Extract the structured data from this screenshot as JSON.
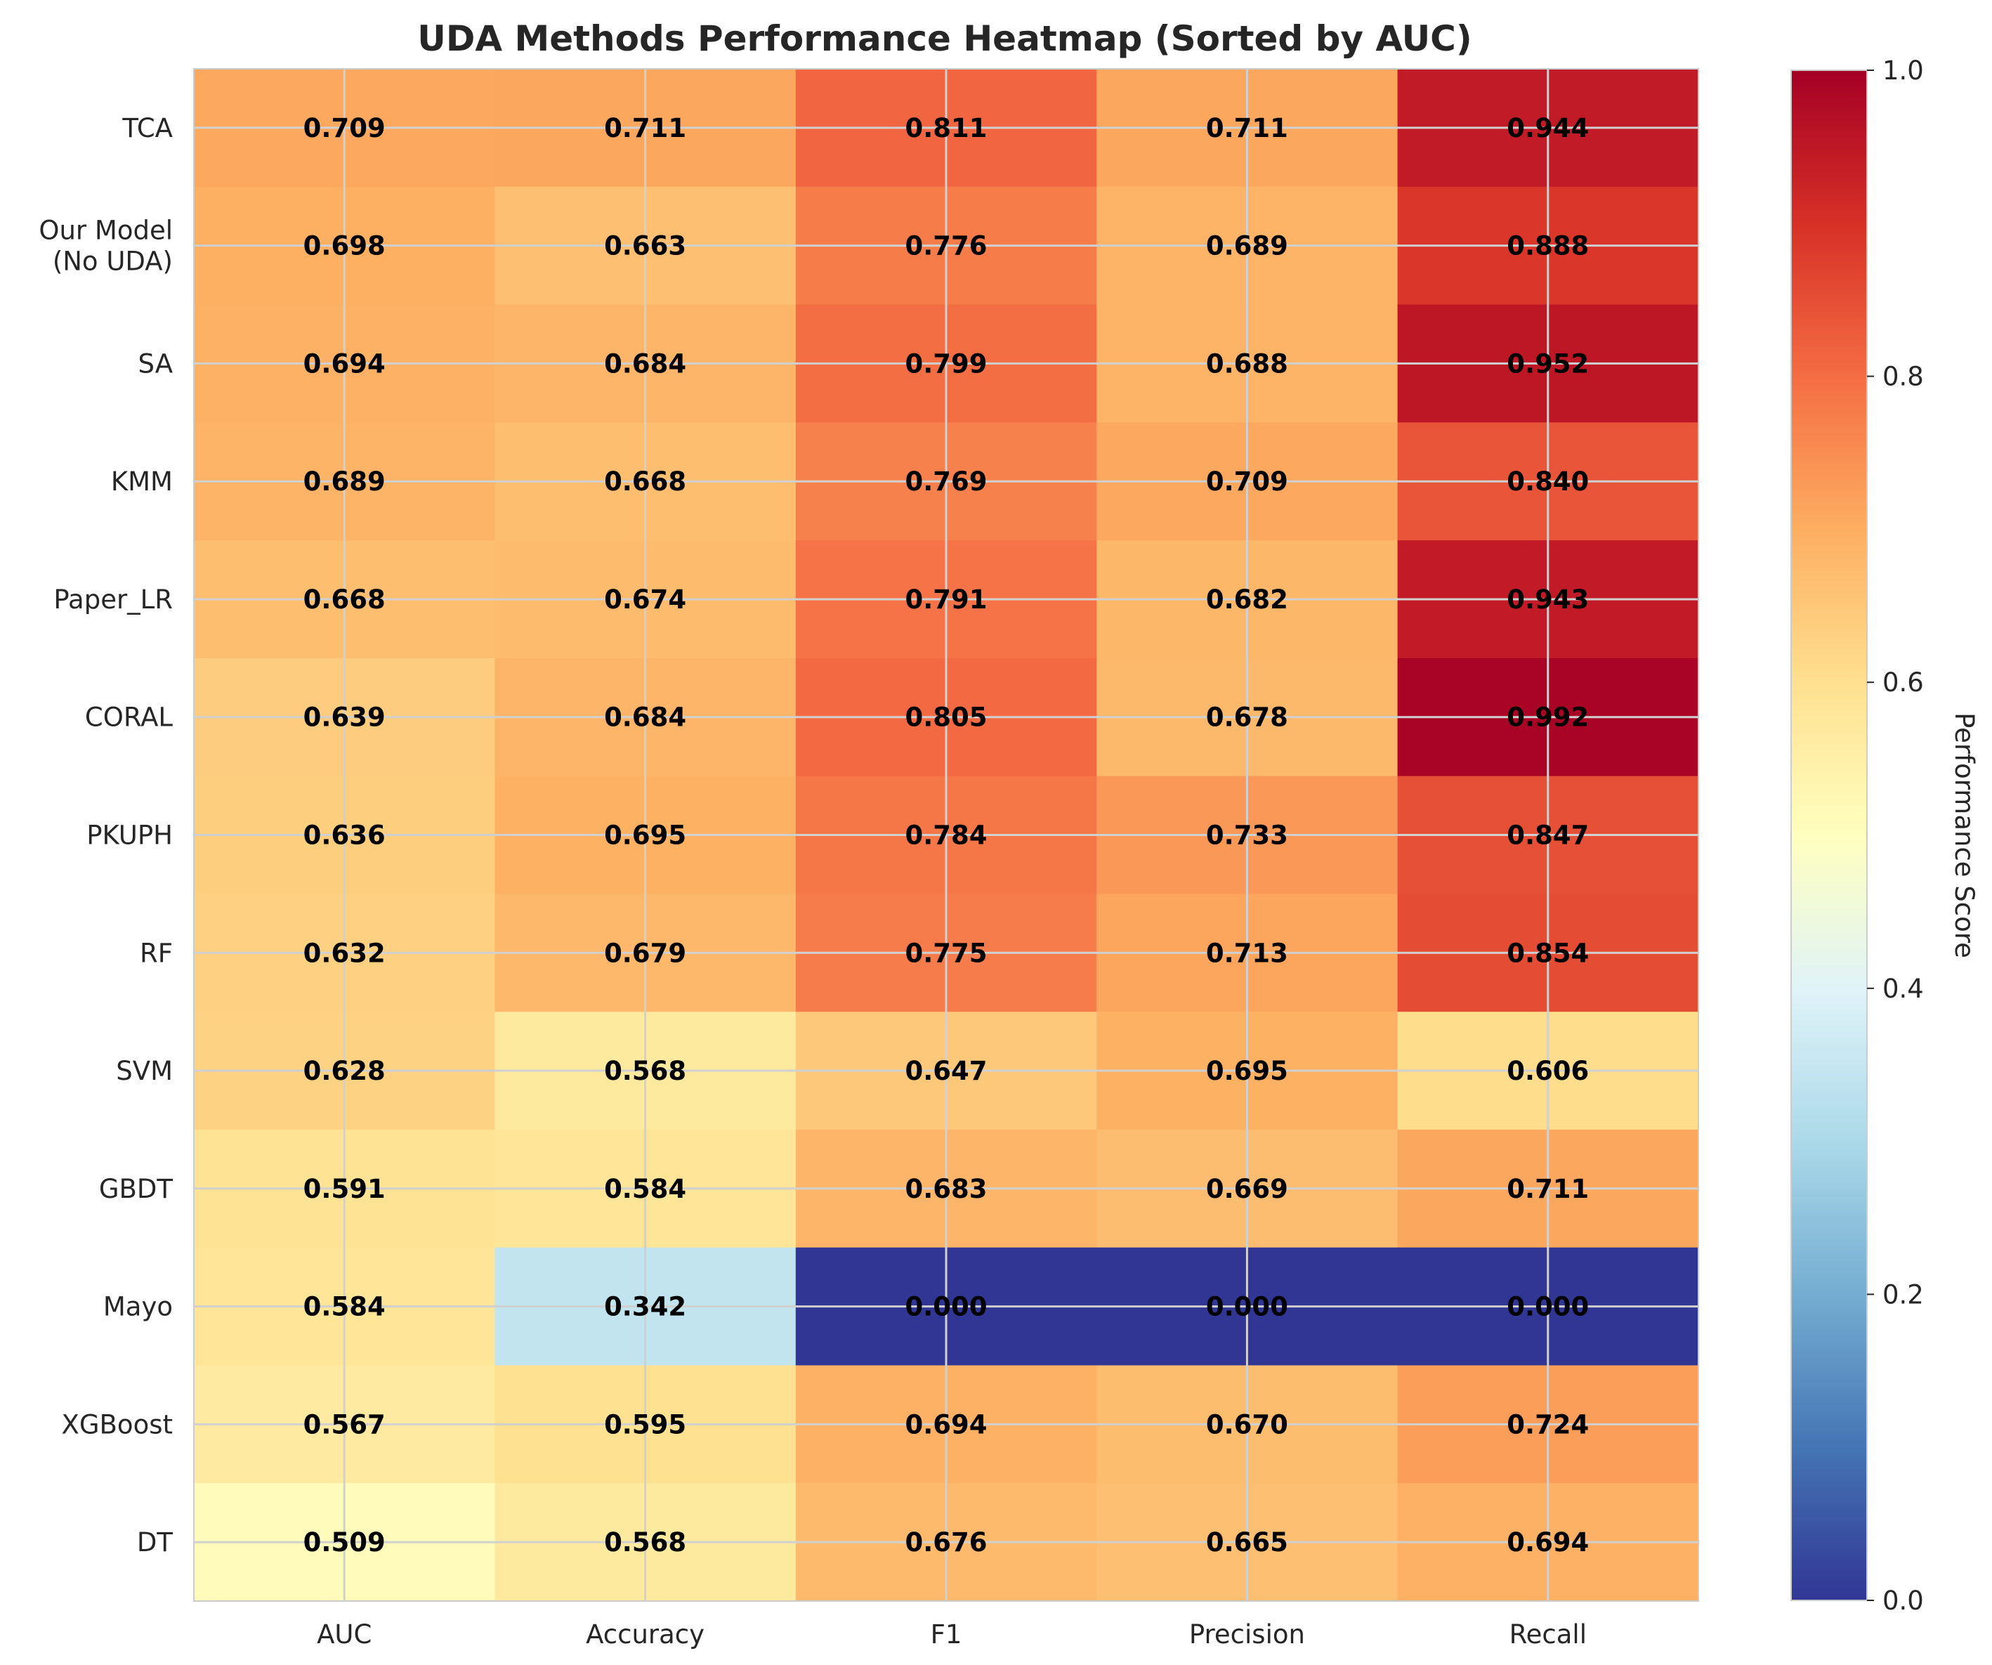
{
  "chart_data": {
    "type": "heatmap",
    "title": "UDA Methods Performance Heatmap (Sorted by AUC)",
    "rows": [
      "TCA",
      "Our Model\n(No UDA)",
      "SA",
      "KMM",
      "Paper_LR",
      "CORAL",
      "PKUPH",
      "RF",
      "SVM",
      "GBDT",
      "Mayo",
      "XGBoost",
      "DT"
    ],
    "columns": [
      "AUC",
      "Accuracy",
      "F1",
      "Precision",
      "Recall"
    ],
    "values": [
      [
        0.709,
        0.711,
        0.811,
        0.711,
        0.944
      ],
      [
        0.698,
        0.663,
        0.776,
        0.689,
        0.888
      ],
      [
        0.694,
        0.684,
        0.799,
        0.688,
        0.952
      ],
      [
        0.689,
        0.668,
        0.769,
        0.709,
        0.84
      ],
      [
        0.668,
        0.674,
        0.791,
        0.682,
        0.943
      ],
      [
        0.639,
        0.684,
        0.805,
        0.678,
        0.992
      ],
      [
        0.636,
        0.695,
        0.784,
        0.733,
        0.847
      ],
      [
        0.632,
        0.679,
        0.775,
        0.713,
        0.854
      ],
      [
        0.628,
        0.568,
        0.647,
        0.695,
        0.606
      ],
      [
        0.591,
        0.584,
        0.683,
        0.669,
        0.711
      ],
      [
        0.584,
        0.342,
        0.0,
        0.0,
        0.0
      ],
      [
        0.567,
        0.595,
        0.694,
        0.67,
        0.724
      ],
      [
        0.509,
        0.568,
        0.676,
        0.665,
        0.694
      ]
    ],
    "value_format": "3 decimals",
    "colormap": "RdYlBu_r",
    "colorbar": {
      "label": "Performance Score",
      "range": [
        0.0,
        1.0
      ],
      "ticks": [
        "0.0",
        "0.2",
        "0.4",
        "0.6",
        "0.8",
        "1.0"
      ]
    },
    "grid": true
  }
}
